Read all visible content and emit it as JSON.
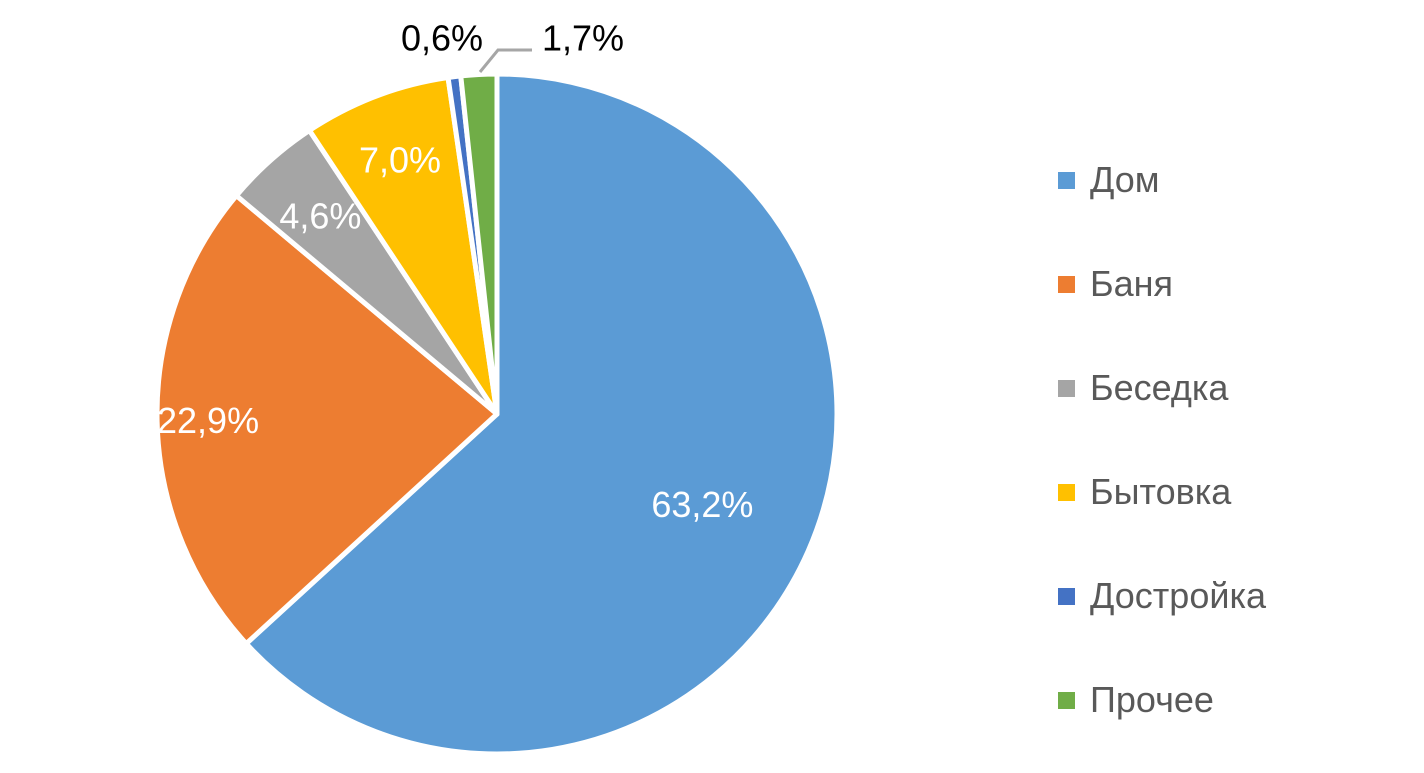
{
  "chart_data": {
    "type": "pie",
    "categories": [
      "Дом",
      "Баня",
      "Беседка",
      "Бытовка",
      "Достройка",
      "Прочее"
    ],
    "values": [
      63.2,
      22.9,
      4.6,
      7.0,
      0.6,
      1.7
    ],
    "data_labels": [
      "63,2%",
      "22,9%",
      "4,6%",
      "7,0%",
      "0,6%",
      "1,7%"
    ],
    "colors": [
      "#5B9BD5",
      "#ED7D31",
      "#A5A5A5",
      "#FFC000",
      "#4472C4",
      "#70AD47"
    ],
    "start_angle": "12 o'clock",
    "direction": "clockwise",
    "legend_position": "right",
    "title": ""
  }
}
